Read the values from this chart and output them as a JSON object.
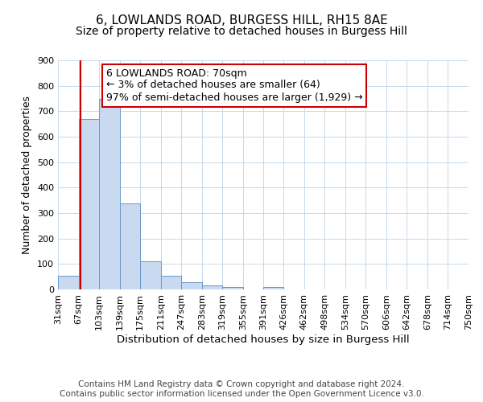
{
  "title": "6, LOWLANDS ROAD, BURGESS HILL, RH15 8AE",
  "subtitle": "Size of property relative to detached houses in Burgess Hill",
  "xlabel": "Distribution of detached houses by size in Burgess Hill",
  "ylabel": "Number of detached properties",
  "bar_values": [
    55,
    670,
    750,
    338,
    110,
    55,
    28,
    15,
    10,
    0,
    10,
    0,
    0,
    0,
    0,
    0,
    0,
    0,
    0,
    0
  ],
  "bin_labels": [
    "31sqm",
    "67sqm",
    "103sqm",
    "139sqm",
    "175sqm",
    "211sqm",
    "247sqm",
    "283sqm",
    "319sqm",
    "355sqm",
    "391sqm",
    "426sqm",
    "462sqm",
    "498sqm",
    "534sqm",
    "570sqm",
    "606sqm",
    "642sqm",
    "678sqm",
    "714sqm",
    "750sqm"
  ],
  "bin_edges": [
    31,
    67,
    103,
    139,
    175,
    211,
    247,
    283,
    319,
    355,
    391,
    426,
    462,
    498,
    534,
    570,
    606,
    642,
    678,
    714,
    750
  ],
  "bar_color": "#c9d9f0",
  "bar_edge_color": "#6699cc",
  "property_line_x": 70,
  "property_line_color": "#cc0000",
  "annotation_line1": "6 LOWLANDS ROAD: 70sqm",
  "annotation_line2": "← 3% of detached houses are smaller (64)",
  "annotation_line3": "97% of semi-detached houses are larger (1,929) →",
  "annotation_box_color": "#ffffff",
  "annotation_box_edge_color": "#cc0000",
  "ylim": [
    0,
    900
  ],
  "yticks": [
    0,
    100,
    200,
    300,
    400,
    500,
    600,
    700,
    800,
    900
  ],
  "grid_color": "#c8d8e8",
  "footer_line1": "Contains HM Land Registry data © Crown copyright and database right 2024.",
  "footer_line2": "Contains public sector information licensed under the Open Government Licence v3.0.",
  "title_fontsize": 11,
  "subtitle_fontsize": 10,
  "xlabel_fontsize": 9.5,
  "ylabel_fontsize": 9,
  "tick_fontsize": 8,
  "annotation_fontsize": 9,
  "footer_fontsize": 7.5
}
